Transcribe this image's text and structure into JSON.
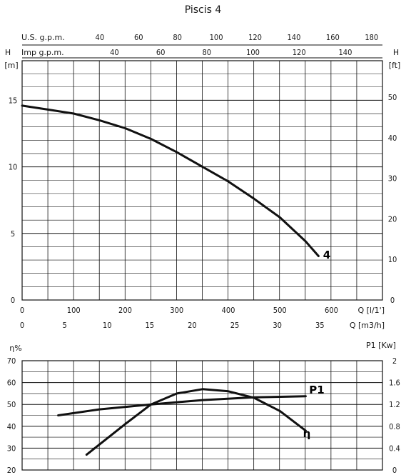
{
  "title": "Piscis 4",
  "chart_data": [
    {
      "type": "line",
      "name": "head-curve",
      "curve_label": "4",
      "x_label": "Q [l/1']",
      "x_label2": "Q [m3/h]",
      "y_label_left": "H",
      "y_unit_left": "[m]",
      "y_label_right": "H",
      "y_unit_right": "[ft]",
      "top_axis1_label": "U.S. g.p.m.",
      "top_axis2_label": "Imp g.p.m.",
      "x_range": [
        0,
        700
      ],
      "x_ticks": [
        0,
        100,
        200,
        300,
        400,
        500,
        600
      ],
      "x2_range": [
        0,
        42
      ],
      "x2_ticks": [
        0,
        5,
        10,
        15,
        20,
        25,
        30,
        35
      ],
      "us_gpm_ticks": [
        40,
        60,
        80,
        100,
        120,
        140,
        160,
        180
      ],
      "imp_gpm_ticks": [
        40,
        60,
        80,
        100,
        120,
        140
      ],
      "y_range": [
        0,
        18
      ],
      "y_ticks": [
        0,
        5,
        10,
        15
      ],
      "y_ft_ticks": [
        0,
        10,
        20,
        30,
        40,
        50
      ],
      "series": [
        {
          "x": [
            0,
            50,
            100,
            150,
            200,
            250,
            300,
            350,
            400,
            450,
            500,
            550,
            575
          ],
          "y": [
            14.6,
            14.3,
            14.0,
            13.5,
            12.9,
            12.1,
            11.1,
            10.0,
            8.9,
            7.6,
            6.2,
            4.4,
            3.3
          ]
        }
      ]
    },
    {
      "type": "line",
      "name": "efficiency-power",
      "y_label_left": "η%",
      "y_label_right": "P1 [Kw]",
      "x_range": [
        0,
        700
      ],
      "y_range": [
        20,
        70
      ],
      "y_ticks": [
        20,
        30,
        40,
        50,
        60,
        70
      ],
      "y2_range": [
        0,
        2
      ],
      "y2_ticks": [
        0,
        0.4,
        0.8,
        1.2,
        1.6,
        2
      ],
      "series": [
        {
          "name": "η",
          "x": [
            125,
            200,
            250,
            300,
            350,
            400,
            450,
            500,
            550
          ],
          "y": [
            27,
            41,
            50,
            55,
            57,
            56,
            53,
            47,
            38
          ]
        },
        {
          "name": "P1",
          "x": [
            70,
            150,
            250,
            350,
            450,
            550
          ],
          "y_kw": [
            1.0,
            1.11,
            1.2,
            1.28,
            1.33,
            1.35
          ]
        }
      ]
    }
  ]
}
